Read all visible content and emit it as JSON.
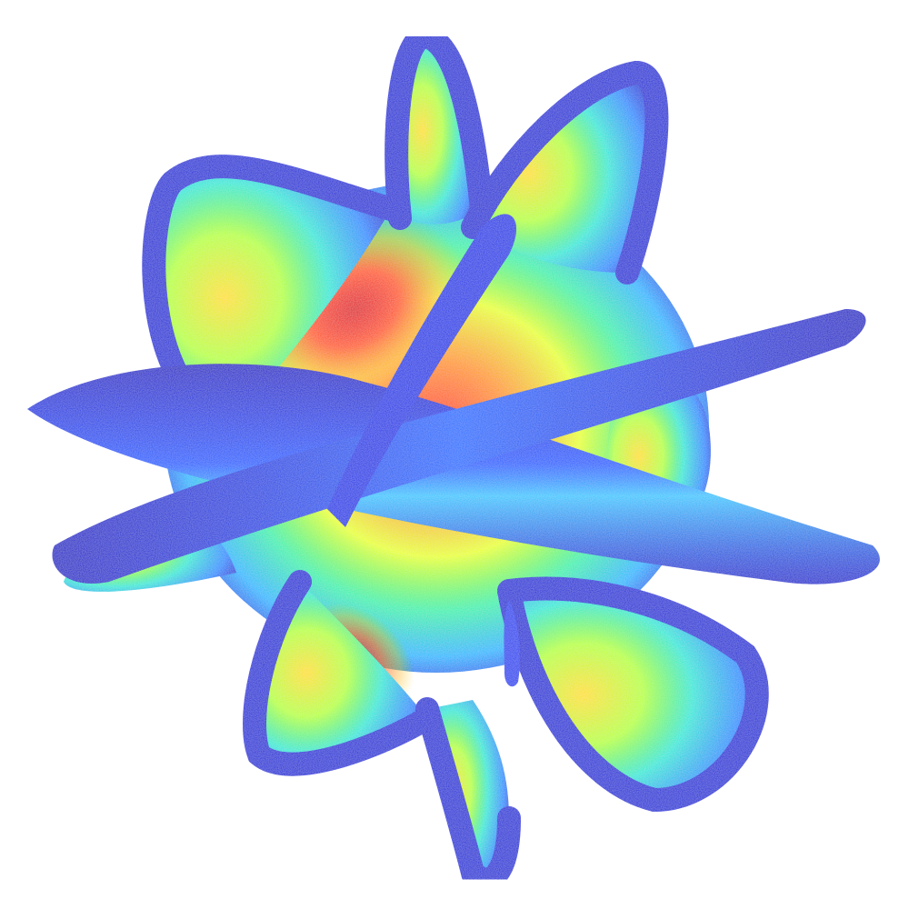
{
  "figure": {
    "background": "#ffffff",
    "colormap": [
      "#0000c8",
      "#0050ff",
      "#00c8ff",
      "#30f0b0",
      "#c8ff20",
      "#ffd000",
      "#ff6a00",
      "#e00000"
    ]
  }
}
